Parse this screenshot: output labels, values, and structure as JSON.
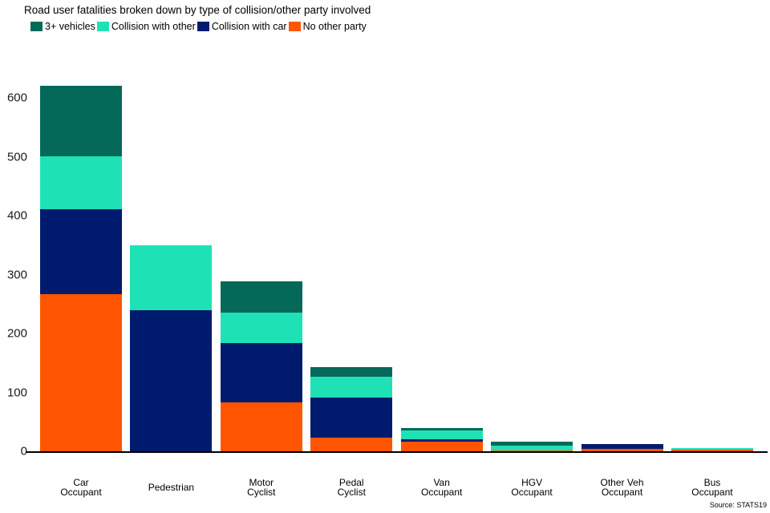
{
  "title": "Road user fatalities broken down by type of collision/other party involved",
  "source_note": "Source: STATS19",
  "colors": {
    "three_plus_vehicles": "#05695A",
    "collision_with_other": "#1EE2B6",
    "collision_with_car": "#001B6E",
    "no_other_party": "#FF5500",
    "axis": "#000000"
  },
  "legend": [
    {
      "label": "3+ vehicles",
      "color": "#05695A"
    },
    {
      "label": "Collision with other",
      "color": "#1EE2B6"
    },
    {
      "label": "Collision with car",
      "color": "#001B6E"
    },
    {
      "label": "No other party",
      "color": "#FF5500"
    }
  ],
  "chart_data": {
    "type": "bar",
    "stacked": true,
    "title": "Road user fatalities broken down by type of collision/other party involved",
    "categories": [
      "Car Occupant",
      "Pedestrian",
      "Motor Cyclist",
      "Pedal Cyclist",
      "Van Occupant",
      "HGV Occupant",
      "Other Veh Occupant",
      "Bus Occupant"
    ],
    "category_label_lines": [
      [
        "Car",
        "Occupant"
      ],
      [
        "Pedestrian"
      ],
      [
        "Motor",
        "Cyclist"
      ],
      [
        "Pedal",
        "Cyclist"
      ],
      [
        "Van",
        "Occupant"
      ],
      [
        "HGV",
        "Occupant"
      ],
      [
        "Other Veh",
        "Occupant"
      ],
      [
        "Bus",
        "Occupant"
      ]
    ],
    "series": [
      {
        "name": "No other party",
        "color": "#FF5500",
        "values": [
          267,
          0,
          83,
          23,
          16,
          2,
          4,
          3
        ]
      },
      {
        "name": "Collision with car",
        "color": "#001B6E",
        "values": [
          144,
          240,
          101,
          68,
          5,
          0,
          8,
          0
        ]
      },
      {
        "name": "Collision with other",
        "color": "#1EE2B6",
        "values": [
          90,
          110,
          52,
          35,
          14,
          8,
          0,
          2
        ]
      },
      {
        "name": "3+ vehicles",
        "color": "#05695A",
        "values": [
          120,
          0,
          52,
          17,
          5,
          7,
          0,
          0
        ]
      }
    ],
    "totals": [
      621,
      350,
      288,
      143,
      40,
      17,
      12,
      5
    ],
    "xlabel": "",
    "ylabel": "",
    "ylim": [
      0,
      600
    ],
    "yticks": [
      0,
      100,
      200,
      300,
      400,
      500,
      600
    ],
    "grid": false,
    "legend_position": "top-left",
    "source": "Source: STATS19"
  }
}
